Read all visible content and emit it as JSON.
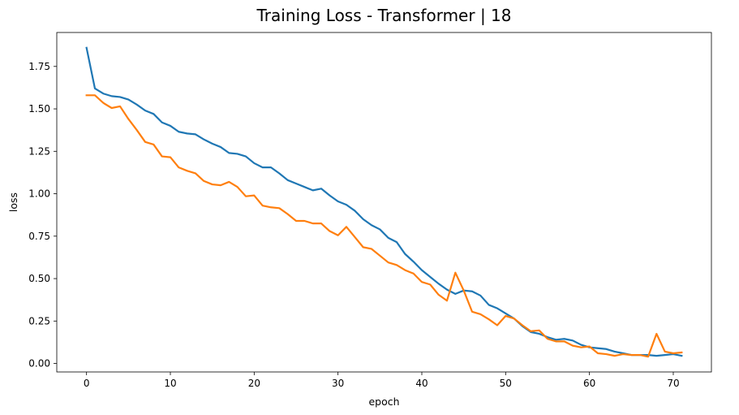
{
  "chart_data": {
    "type": "line",
    "title": "Training Loss - Transformer | 18",
    "xlabel": "epoch",
    "ylabel": "loss",
    "xlim": [
      -3.55,
      74.55
    ],
    "ylim": [
      -0.05,
      1.95
    ],
    "xticks": [
      0,
      10,
      20,
      30,
      40,
      50,
      60,
      70
    ],
    "yticks": [
      0.0,
      0.25,
      0.5,
      0.75,
      1.0,
      1.25,
      1.5,
      1.75
    ],
    "ytick_labels": [
      "0.00",
      "0.25",
      "0.50",
      "0.75",
      "1.00",
      "1.25",
      "1.50",
      "1.75"
    ],
    "grid": false,
    "legend": false,
    "x": [
      0,
      1,
      2,
      3,
      4,
      5,
      6,
      7,
      8,
      9,
      10,
      11,
      12,
      13,
      14,
      15,
      16,
      17,
      18,
      19,
      20,
      21,
      22,
      23,
      24,
      25,
      26,
      27,
      28,
      29,
      30,
      31,
      32,
      33,
      34,
      35,
      36,
      37,
      38,
      39,
      40,
      41,
      42,
      43,
      44,
      45,
      46,
      47,
      48,
      49,
      50,
      51,
      52,
      53,
      54,
      55,
      56,
      57,
      58,
      59,
      60,
      61,
      62,
      63,
      64,
      65,
      66,
      67,
      68,
      69,
      70,
      71
    ],
    "series": [
      {
        "color": "#1f77b4",
        "values": [
          1.86,
          1.62,
          1.59,
          1.575,
          1.57,
          1.555,
          1.525,
          1.49,
          1.47,
          1.42,
          1.4,
          1.365,
          1.355,
          1.35,
          1.32,
          1.295,
          1.275,
          1.24,
          1.235,
          1.22,
          1.18,
          1.155,
          1.155,
          1.12,
          1.08,
          1.06,
          1.04,
          1.02,
          1.03,
          0.99,
          0.955,
          0.935,
          0.9,
          0.85,
          0.815,
          0.79,
          0.74,
          0.715,
          0.645,
          0.6,
          0.55,
          0.51,
          0.47,
          0.435,
          0.41,
          0.43,
          0.425,
          0.4,
          0.345,
          0.325,
          0.295,
          0.265,
          0.22,
          0.185,
          0.175,
          0.155,
          0.14,
          0.145,
          0.135,
          0.11,
          0.095,
          0.09,
          0.085,
          0.07,
          0.06,
          0.05,
          0.05,
          0.05,
          0.045,
          0.05,
          0.055,
          0.045
        ]
      },
      {
        "color": "#ff7f0e",
        "values": [
          1.58,
          1.58,
          1.535,
          1.505,
          1.515,
          1.44,
          1.375,
          1.305,
          1.29,
          1.22,
          1.215,
          1.155,
          1.135,
          1.12,
          1.075,
          1.055,
          1.05,
          1.07,
          1.04,
          0.985,
          0.99,
          0.93,
          0.92,
          0.915,
          0.88,
          0.84,
          0.84,
          0.825,
          0.825,
          0.78,
          0.755,
          0.805,
          0.745,
          0.685,
          0.675,
          0.635,
          0.595,
          0.58,
          0.55,
          0.53,
          0.48,
          0.465,
          0.405,
          0.37,
          0.535,
          0.43,
          0.305,
          0.29,
          0.26,
          0.225,
          0.28,
          0.265,
          0.225,
          0.19,
          0.195,
          0.145,
          0.13,
          0.13,
          0.105,
          0.095,
          0.1,
          0.06,
          0.055,
          0.045,
          0.055,
          0.05,
          0.05,
          0.04,
          0.175,
          0.07,
          0.06,
          0.065
        ]
      }
    ]
  }
}
